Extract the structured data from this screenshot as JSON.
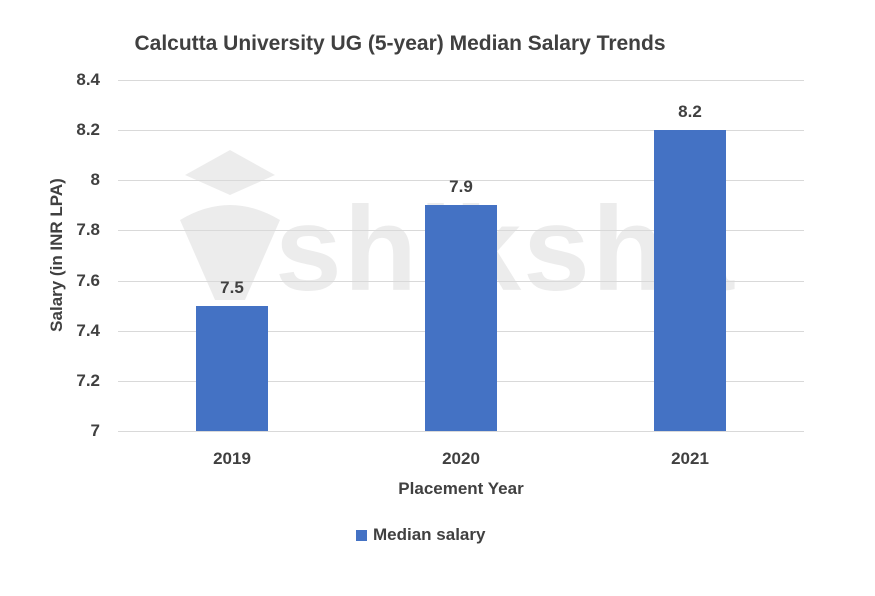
{
  "chart_data": {
    "type": "bar",
    "title": "Calcutta University UG (5-year) Median Salary Trends",
    "xlabel": "Placement Year",
    "ylabel": "Salary (in INR LPA)",
    "categories": [
      "2019",
      "2020",
      "2021"
    ],
    "series": [
      {
        "name": "Median salary",
        "values": [
          7.5,
          7.9,
          8.2
        ],
        "color": "#4472c4"
      }
    ],
    "data_labels": [
      "7.5",
      "7.9",
      "8.2"
    ],
    "ylim": [
      7,
      8.4
    ],
    "yticks": [
      "7",
      "7.2",
      "7.4",
      "7.6",
      "7.8",
      "8",
      "8.2",
      "8.4"
    ],
    "grid": true,
    "legend_position": "bottom"
  },
  "watermark": {
    "text": "shiksha"
  }
}
